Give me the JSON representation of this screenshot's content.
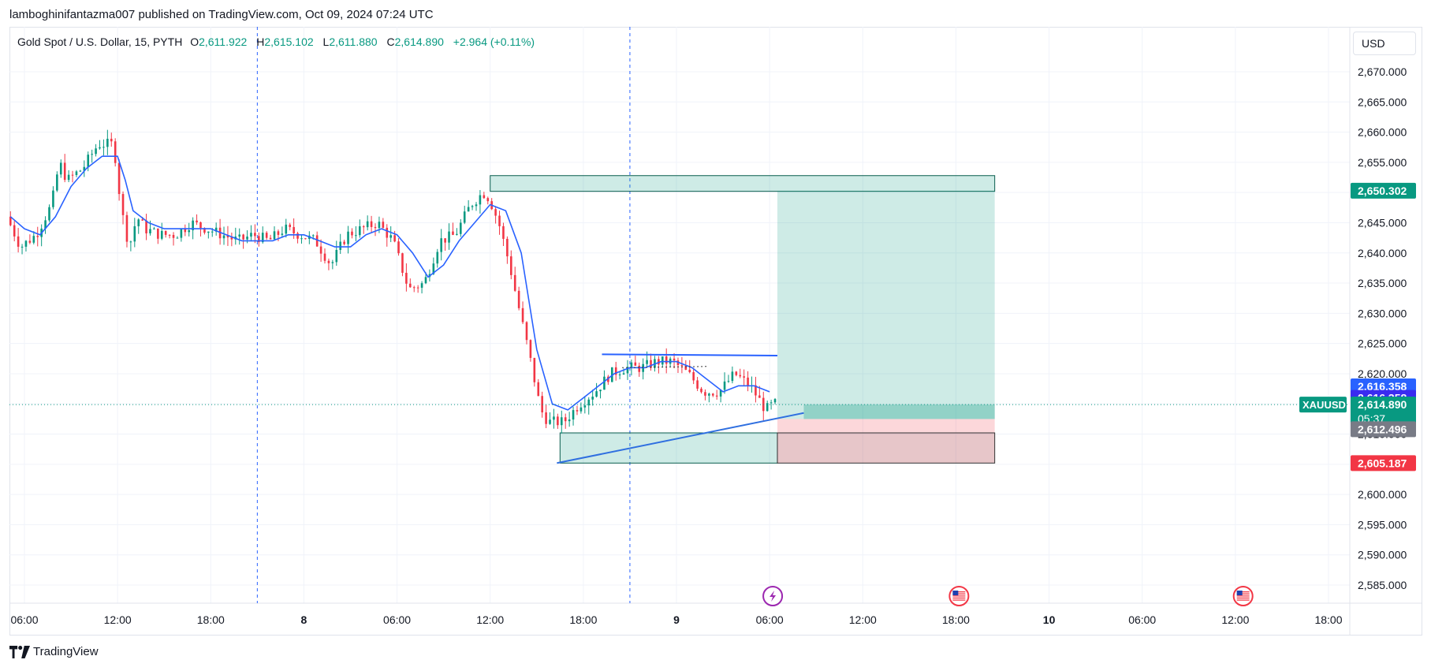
{
  "attribution": "lamboghinifantazma007 published on TradingView.com, Oct 09, 2024 07:24 UTC",
  "legend": {
    "title": "Gold Spot / U.S. Dollar, 15, PYTH",
    "open_label": "O",
    "open": "2,611.922",
    "high_label": "H",
    "high": "2,615.102",
    "low_label": "L",
    "low": "2,611.880",
    "close_label": "C",
    "close": "2,614.890",
    "change": "+2.964 (+0.11%)"
  },
  "currency_button": "USD",
  "footer": {
    "brand": "TradingView"
  },
  "colors": {
    "up": "#089981",
    "down": "#f23645",
    "ma": "#2962ff",
    "target": "#089981",
    "stop": "#f23645",
    "avg": "#2962ff",
    "gray": "#787b86"
  },
  "chart_data": {
    "type": "candlestick",
    "symbol": "XAUUSD",
    "timeframe": "15",
    "y_range": [
      2581,
      2674
    ],
    "y_ticks": [
      "2,585.000",
      "2,590.000",
      "2,595.000",
      "2,600.000",
      "2,605.000",
      "2,610.000",
      "2,615.000",
      "2,620.000",
      "2,625.000",
      "2,630.000",
      "2,635.000",
      "2,640.000",
      "2,645.000",
      "2,650.000",
      "2,655.000",
      "2,660.000",
      "2,665.000",
      "2,670.000"
    ],
    "y_tick_values": [
      2585,
      2590,
      2595,
      2600,
      2605,
      2610,
      2615,
      2620,
      2625,
      2630,
      2635,
      2640,
      2645,
      2650,
      2655,
      2660,
      2665,
      2670
    ],
    "x_ticks": [
      {
        "label": "06:00",
        "t": 0,
        "bold": false
      },
      {
        "label": "12:00",
        "t": 6,
        "bold": false
      },
      {
        "label": "18:00",
        "t": 12,
        "bold": false
      },
      {
        "label": "8",
        "t": 18,
        "bold": true
      },
      {
        "label": "06:00",
        "t": 24,
        "bold": false
      },
      {
        "label": "12:00",
        "t": 30,
        "bold": false
      },
      {
        "label": "18:00",
        "t": 36,
        "bold": false
      },
      {
        "label": "9",
        "t": 42,
        "bold": true
      },
      {
        "label": "06:00",
        "t": 48,
        "bold": false
      },
      {
        "label": "12:00",
        "t": 54,
        "bold": false
      },
      {
        "label": "18:00",
        "t": 60,
        "bold": false
      },
      {
        "label": "10",
        "t": 66,
        "bold": true
      },
      {
        "label": "06:00",
        "t": 72,
        "bold": false
      },
      {
        "label": "12:00",
        "t": 78,
        "bold": false
      },
      {
        "label": "18:00",
        "t": 84,
        "bold": false
      }
    ],
    "x_range_hours": [
      -0.9,
      86.5
    ],
    "session_lines_hours": [
      15,
      39
    ],
    "price_path": [
      [
        -0.9,
        2646
      ],
      [
        0,
        2641
      ],
      [
        1,
        2643
      ],
      [
        2,
        2648
      ],
      [
        2.5,
        2655
      ],
      [
        3,
        2652
      ],
      [
        4,
        2654
      ],
      [
        5,
        2658
      ],
      [
        6,
        2658
      ],
      [
        6.5,
        2647
      ],
      [
        7,
        2641
      ],
      [
        7.5,
        2646
      ],
      [
        8,
        2644
      ],
      [
        9,
        2643
      ],
      [
        10,
        2643
      ],
      [
        11,
        2645
      ],
      [
        12,
        2644
      ],
      [
        13,
        2643
      ],
      [
        14,
        2642
      ],
      [
        15,
        2643
      ],
      [
        16,
        2642
      ],
      [
        17,
        2644
      ],
      [
        18,
        2643
      ],
      [
        19,
        2642
      ],
      [
        20,
        2638
      ],
      [
        21,
        2643
      ],
      [
        22,
        2644
      ],
      [
        23,
        2645
      ],
      [
        24,
        2642
      ],
      [
        25,
        2634
      ],
      [
        26,
        2635
      ],
      [
        27,
        2642
      ],
      [
        28,
        2643
      ],
      [
        29,
        2648
      ],
      [
        29.8,
        2650
      ],
      [
        30.2,
        2649
      ],
      [
        30.8,
        2645
      ],
      [
        31.5,
        2638
      ],
      [
        32,
        2632
      ],
      [
        32.7,
        2624
      ],
      [
        33.5,
        2614
      ],
      [
        34,
        2612
      ],
      [
        35,
        2612
      ],
      [
        36,
        2615
      ],
      [
        37,
        2617
      ],
      [
        38,
        2620
      ],
      [
        39,
        2621
      ],
      [
        40,
        2621
      ],
      [
        41,
        2622
      ],
      [
        42,
        2622
      ],
      [
        43,
        2620
      ],
      [
        44,
        2617
      ],
      [
        45,
        2617
      ],
      [
        46,
        2620
      ],
      [
        47,
        2618
      ],
      [
        48,
        2614
      ],
      [
        48.5,
        2615
      ]
    ],
    "ma_path": [
      [
        -0.9,
        2646
      ],
      [
        0,
        2644
      ],
      [
        1,
        2643
      ],
      [
        2,
        2646
      ],
      [
        3,
        2651
      ],
      [
        4,
        2654
      ],
      [
        5,
        2656
      ],
      [
        6,
        2656
      ],
      [
        6.5,
        2652
      ],
      [
        7,
        2647
      ],
      [
        8,
        2645
      ],
      [
        9,
        2644
      ],
      [
        10,
        2644
      ],
      [
        11,
        2644
      ],
      [
        12,
        2644
      ],
      [
        13,
        2643
      ],
      [
        14,
        2642
      ],
      [
        15,
        2642
      ],
      [
        16,
        2642
      ],
      [
        17,
        2643
      ],
      [
        18,
        2643
      ],
      [
        19,
        2642
      ],
      [
        20,
        2641
      ],
      [
        21,
        2641
      ],
      [
        22,
        2643
      ],
      [
        23,
        2644
      ],
      [
        24,
        2643
      ],
      [
        25,
        2640
      ],
      [
        26,
        2636
      ],
      [
        27,
        2638
      ],
      [
        28,
        2642
      ],
      [
        29,
        2645
      ],
      [
        30,
        2648
      ],
      [
        31,
        2647
      ],
      [
        32,
        2640
      ],
      [
        33,
        2624
      ],
      [
        34,
        2615
      ],
      [
        35,
        2614
      ],
      [
        36,
        2616
      ],
      [
        37,
        2618
      ],
      [
        38,
        2620
      ],
      [
        39,
        2621
      ],
      [
        40,
        2621
      ],
      [
        41,
        2622
      ],
      [
        42,
        2622
      ],
      [
        43,
        2621
      ],
      [
        44,
        2619
      ],
      [
        45,
        2617
      ],
      [
        46,
        2618
      ],
      [
        47,
        2618
      ],
      [
        48,
        2617
      ]
    ],
    "drawings": {
      "resistance_box": {
        "t0": 30,
        "t1": 62.5,
        "p_top": 2652.8,
        "p_bottom": 2650.2
      },
      "support_box": {
        "t0": 34.5,
        "t1": 48.5,
        "p_top": 2610.2,
        "p_bottom": 2605.2
      },
      "position": {
        "t0": 48.5,
        "t1": 62.5,
        "entry": 2612.5,
        "target": 2650.302,
        "stop": 2605.187
      },
      "channel_top": {
        "t0": 37.2,
        "p0": 2623.2,
        "t1": 48.5,
        "p1": 2623.0
      },
      "trendline": {
        "t0": 34.3,
        "p0": 2605.2,
        "t1": 50.2,
        "p1": 2613.5
      }
    },
    "current_price": 2614.89,
    "price_tags": [
      {
        "label": "2,650.302",
        "value": 2650.302,
        "color": "#089981"
      },
      {
        "label": "2,616.358",
        "value": 2617.9,
        "color": "#2962ff"
      },
      {
        "label": "2,616.358",
        "value": 2616.0,
        "color": "#3a2bf0"
      },
      {
        "label": "2,614.890",
        "value": 2614.9,
        "color": "#089981"
      },
      {
        "label": "2,612.496",
        "value": 2610.8,
        "color": "#787b86"
      },
      {
        "label": "2,605.187",
        "value": 2605.187,
        "color": "#f23645"
      }
    ],
    "countdown": "05:37",
    "symbol_tag": "XAUUSD",
    "event_icons": [
      {
        "t": 48.2,
        "kind": "lightning"
      },
      {
        "t": 60.2,
        "kind": "us-flag"
      },
      {
        "t": 78.5,
        "kind": "us-flag"
      }
    ]
  }
}
